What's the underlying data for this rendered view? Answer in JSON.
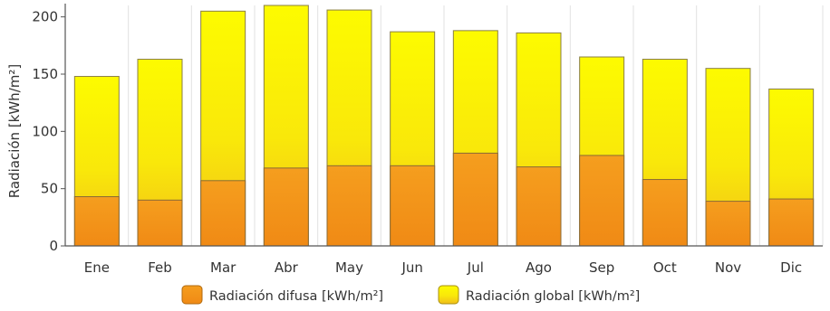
{
  "chart_data": {
    "type": "bar",
    "stacking": "overlay",
    "categories": [
      "Ene",
      "Feb",
      "Mar",
      "Abr",
      "May",
      "Jun",
      "Jul",
      "Ago",
      "Sep",
      "Oct",
      "Nov",
      "Dic"
    ],
    "series": [
      {
        "name": "Radiación global [kWh/m²]",
        "values": [
          148,
          163,
          205,
          210,
          206,
          187,
          188,
          186,
          165,
          163,
          155,
          137
        ],
        "color_top": "#fdfb00",
        "color_bottom": "#f1be1a"
      },
      {
        "name": "Radiación difusa [kWh/m²]",
        "values": [
          43,
          40,
          57,
          68,
          70,
          70,
          81,
          69,
          79,
          58,
          39,
          41
        ],
        "color_top": "#f49a1b",
        "color_bottom": "#f08a15"
      }
    ],
    "ylabel": "Radiación [kWh/m²]",
    "xlabel": "",
    "ylim": [
      0,
      210
    ],
    "yticks": [
      0,
      50,
      100,
      150,
      200
    ],
    "grid": "vertical",
    "legend": "bottom-center"
  }
}
